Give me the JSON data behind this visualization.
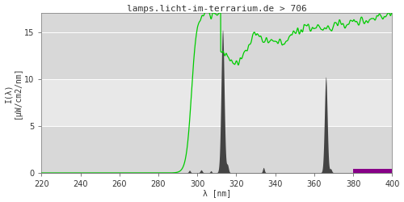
{
  "title": "lamps.licht-im-terrarium.de > 706",
  "xlabel": "λ [nm]",
  "ylabel": "I(λ)\n[μW/cm2/nm]",
  "xlim": [
    220,
    400
  ],
  "ylim": [
    0,
    17
  ],
  "yticks": [
    0,
    5,
    10,
    15
  ],
  "xticks": [
    220,
    240,
    260,
    280,
    300,
    320,
    340,
    360,
    380,
    400
  ],
  "bg_color": "#d8d8d8",
  "bg_band_y1": 5,
  "bg_band_y2": 10,
  "bg_band_color": "#e8e8e8",
  "spectrum_color": "#444444",
  "green_line_color": "#00cc00",
  "purple_color": "#880088",
  "title_color": "#333333",
  "title_fontsize": 8,
  "axis_fontsize": 7,
  "tick_fontsize": 7
}
